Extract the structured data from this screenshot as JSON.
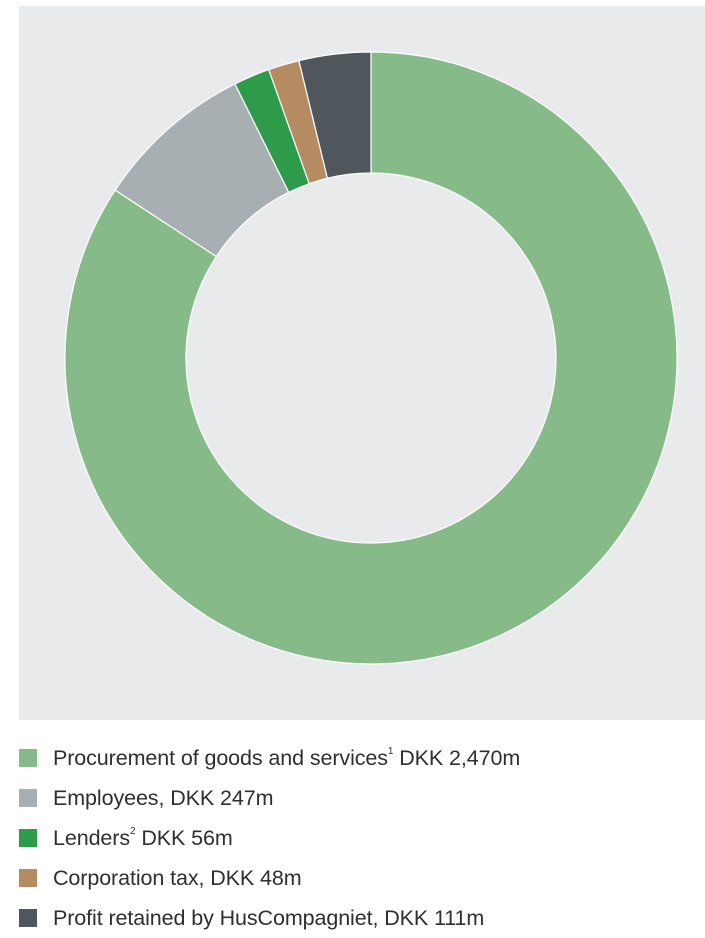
{
  "chart_data": {
    "type": "pie",
    "variant": "donut",
    "unit": "DKK m",
    "slices": [
      {
        "label": "Procurement of goods and services",
        "footnote": "1",
        "value_text": " DKK 2,470m",
        "value": 2470,
        "color": "#86ba89"
      },
      {
        "label": "Employees",
        "footnote": "",
        "value_text": ", DKK 247m",
        "value": 247,
        "color": "#a7afb2"
      },
      {
        "label": "Lenders",
        "footnote": "2",
        "value_text": " DKK 56m",
        "value": 56,
        "color": "#2e9b4a"
      },
      {
        "label": "Corporation tax",
        "footnote": "",
        "value_text": ", DKK 48m",
        "value": 48,
        "color": "#b58c62"
      },
      {
        "label": "Profit retained by HusCompagniet",
        "footnote": "",
        "value_text": ", DKK 111m",
        "value": 111,
        "color": "#4f575d"
      }
    ],
    "background_color": "#e8eaeb",
    "legend_position": "bottom"
  }
}
